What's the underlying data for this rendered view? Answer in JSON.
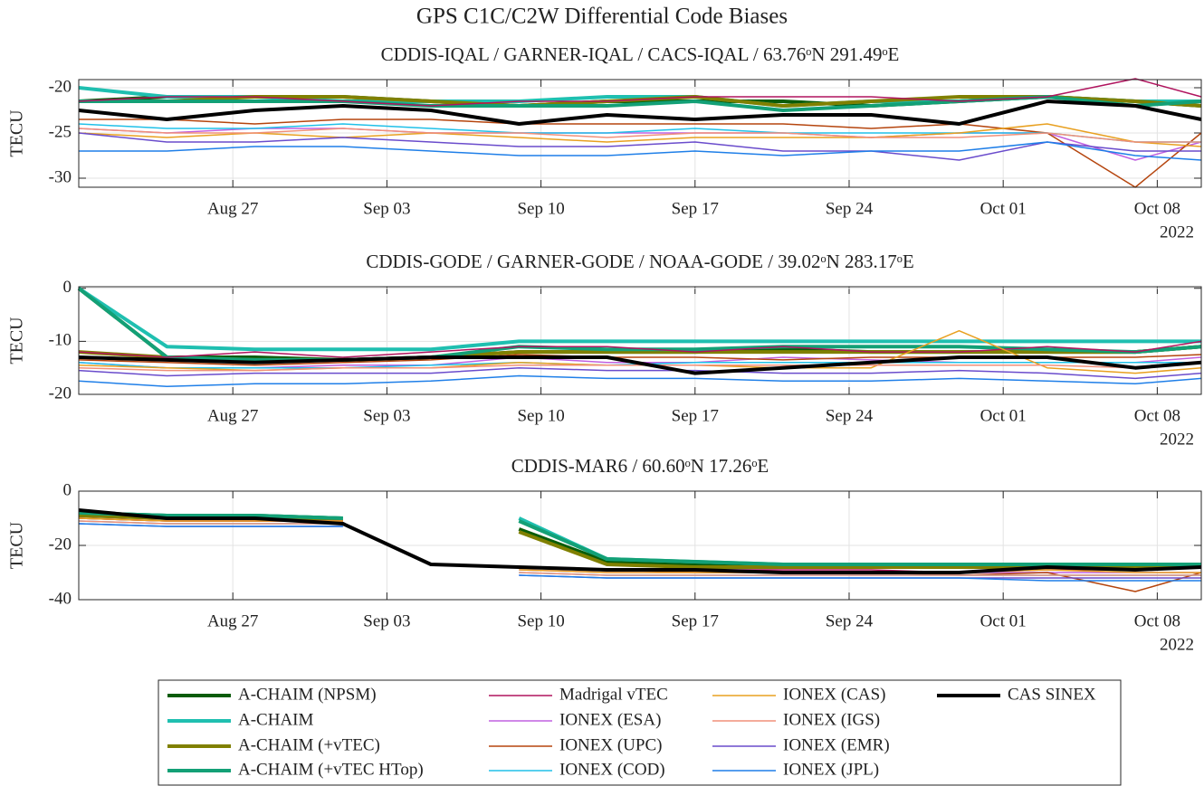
{
  "title": "GPS C1C/C2W Differential Code Biases",
  "chart_data": [
    {
      "type": "line",
      "title": "CDDIS-IQAL / GARNER-IQAL / CACS-IQAL / 63.76ᵒN 291.49ᵒE",
      "ylabel": "TECU",
      "x": [
        "2022-08-20",
        "2022-08-24",
        "2022-08-28",
        "2022-09-01",
        "2022-09-05",
        "2022-09-09",
        "2022-09-13",
        "2022-09-17",
        "2022-09-21",
        "2022-09-25",
        "2022-09-29",
        "2022-10-03",
        "2022-10-07",
        "2022-10-10"
      ],
      "xlim": [
        "2022-08-20",
        "2022-10-10"
      ],
      "xticks": [
        {
          "value": "2022-08-27",
          "label": "Aug 27"
        },
        {
          "value": "2022-09-03",
          "label": "Sep 03"
        },
        {
          "value": "2022-09-10",
          "label": "Sep 10"
        },
        {
          "value": "2022-09-17",
          "label": "Sep 17"
        },
        {
          "value": "2022-09-24",
          "label": "Sep 24"
        },
        {
          "value": "2022-10-01",
          "label": "Oct 01"
        },
        {
          "value": "2022-10-08",
          "label": "Oct 08"
        }
      ],
      "x_year_label": "2022",
      "ylim": [
        -31,
        -19.1
      ],
      "yticks": [
        -30,
        -25,
        -20
      ],
      "grid": true,
      "legend": "bottom",
      "series": [
        {
          "name": "A-CHAIM (NPSM)",
          "color": "#0a5c0a",
          "line_width": 4,
          "values": [
            -21.5,
            -21,
            -21,
            -21,
            -21.5,
            -22,
            -21.5,
            -21.5,
            -21.5,
            -22,
            -21.5,
            -21,
            -21.5,
            -22
          ]
        },
        {
          "name": "A-CHAIM",
          "color": "#1fbfb0",
          "line_width": 4,
          "values": [
            -20,
            -21,
            -21,
            -21.5,
            -21.5,
            -21.5,
            -21,
            -21,
            -22,
            -21.5,
            -21.5,
            -21,
            -21.5,
            -21.5
          ]
        },
        {
          "name": "A-CHAIM (+vTEC)",
          "color": "#808000",
          "line_width": 4,
          "values": [
            -21.5,
            -21.5,
            -21,
            -21,
            -21.5,
            -22,
            -21.5,
            -21,
            -22,
            -21.5,
            -21,
            -21,
            -21.5,
            -22
          ]
        },
        {
          "name": "A-CHAIM (+vTEC HTop)",
          "color": "#13a076",
          "line_width": 4,
          "values": [
            -21.5,
            -21.5,
            -21.5,
            -21.5,
            -22,
            -22,
            -22,
            -21.5,
            -22.5,
            -22,
            -21.5,
            -21,
            -22,
            -21.5
          ]
        },
        {
          "name": "Madrigal vTEC",
          "color": "#b0145e",
          "line_width": 1.5,
          "values": [
            -21.5,
            -21,
            -21,
            -21.5,
            -22,
            -21.5,
            -21.5,
            -21,
            -21,
            -21,
            -21.5,
            -21,
            -19,
            -21
          ]
        },
        {
          "name": "IONEX (ESA)",
          "color": "#c060e0",
          "line_width": 1.5,
          "values": [
            -24.5,
            -25,
            -24.5,
            -24.5,
            -25,
            -25,
            -25,
            -25,
            -25,
            -25.5,
            -25,
            -25,
            -28,
            -26
          ]
        },
        {
          "name": "IONEX (UPC)",
          "color": "#b5450e",
          "line_width": 1.5,
          "values": [
            -23.5,
            -23.5,
            -24,
            -23.5,
            -23.5,
            -24,
            -24,
            -24,
            -24,
            -24.5,
            -24,
            -25,
            -31,
            -25
          ]
        },
        {
          "name": "IONEX (COD)",
          "color": "#20c0e8",
          "line_width": 1.5,
          "values": [
            -24,
            -24.5,
            -24.5,
            -24,
            -24.5,
            -25,
            -25,
            -24.5,
            -25,
            -25,
            -25,
            -25,
            -26,
            -26
          ]
        },
        {
          "name": "IONEX (CAS)",
          "color": "#e8a020",
          "line_width": 1.5,
          "values": [
            -25,
            -25.5,
            -25,
            -25.5,
            -25,
            -25.5,
            -26,
            -25.5,
            -25.5,
            -25.5,
            -25,
            -24,
            -26,
            -26.5
          ]
        },
        {
          "name": "IONEX (IGS)",
          "color": "#f0907a",
          "line_width": 1.5,
          "values": [
            -24.5,
            -25,
            -25,
            -24.5,
            -25,
            -25,
            -25.5,
            -25,
            -25,
            -25.5,
            -25.5,
            -25,
            -26,
            -26
          ]
        },
        {
          "name": "IONEX (EMR)",
          "color": "#6a4ccc",
          "line_width": 1.5,
          "values": [
            -25,
            -26,
            -26,
            -25.5,
            -26,
            -26.5,
            -26.5,
            -26,
            -27,
            -27,
            -28,
            -26,
            -27,
            -27
          ]
        },
        {
          "name": "IONEX (JPL)",
          "color": "#1f7fe8",
          "line_width": 1.5,
          "values": [
            -27,
            -27,
            -26.5,
            -26.5,
            -27,
            -27.5,
            -27.5,
            -27,
            -27.5,
            -27,
            -27,
            -26,
            -27.5,
            -28
          ]
        },
        {
          "name": "CAS SINEX",
          "color": "#000000",
          "line_width": 4,
          "values": [
            -22.5,
            -23.5,
            -22.5,
            -22,
            -22.5,
            -24,
            -23,
            -23.5,
            -23,
            -23,
            -24,
            -21.5,
            -22,
            -23.5
          ]
        }
      ]
    },
    {
      "type": "line",
      "title": "CDDIS-GODE / GARNER-GODE / NOAA-GODE / 39.02ᵒN 283.17ᵒE",
      "ylabel": "TECU",
      "x": [
        "2022-08-20",
        "2022-08-24",
        "2022-08-28",
        "2022-09-01",
        "2022-09-05",
        "2022-09-09",
        "2022-09-13",
        "2022-09-17",
        "2022-09-21",
        "2022-09-25",
        "2022-09-29",
        "2022-10-03",
        "2022-10-07",
        "2022-10-10"
      ],
      "xlim": [
        "2022-08-20",
        "2022-10-10"
      ],
      "xticks": [
        {
          "value": "2022-08-27",
          "label": "Aug 27"
        },
        {
          "value": "2022-09-03",
          "label": "Sep 03"
        },
        {
          "value": "2022-09-10",
          "label": "Sep 10"
        },
        {
          "value": "2022-09-17",
          "label": "Sep 17"
        },
        {
          "value": "2022-09-24",
          "label": "Sep 24"
        },
        {
          "value": "2022-10-01",
          "label": "Oct 01"
        },
        {
          "value": "2022-10-08",
          "label": "Oct 08"
        }
      ],
      "x_year_label": "2022",
      "ylim": [
        -20,
        0.3
      ],
      "yticks": [
        -20,
        -10,
        0
      ],
      "grid": true,
      "series": [
        {
          "values": [
            0,
            -13,
            -13,
            -13.5,
            -13,
            -12,
            -12,
            -12,
            -11.5,
            -12,
            -12,
            -12,
            -12,
            -11
          ]
        },
        {
          "values": [
            0,
            -11,
            -11.5,
            -11.5,
            -11.5,
            -10,
            -10,
            -10,
            -10,
            -10,
            -10,
            -10,
            -10,
            -10
          ]
        },
        {
          "values": [
            -12,
            -13,
            -13.5,
            -13.5,
            -13,
            -12,
            -12,
            -12,
            -12,
            -12,
            -12,
            -12,
            -12,
            -11
          ]
        },
        {
          "values": [
            0,
            -13,
            -13.5,
            -13.5,
            -13,
            -11,
            -11.5,
            -11.5,
            -11,
            -11,
            -11,
            -11.5,
            -12,
            -11
          ]
        },
        {
          "values": [
            -12,
            -13,
            -12,
            -13,
            -12,
            -11,
            -11,
            -12,
            -11,
            -12,
            -12,
            -11,
            -12,
            -10
          ]
        },
        {
          "values": [
            -14,
            -15,
            -15,
            -14.5,
            -14.5,
            -13,
            -14,
            -14,
            -13,
            -13.5,
            -14,
            -14,
            -14,
            -13
          ]
        },
        {
          "values": [
            -13.5,
            -14,
            -14.5,
            -14,
            -13.5,
            -12.5,
            -13,
            -13,
            -13.5,
            -13,
            -13,
            -13,
            -13,
            -12.5
          ]
        },
        {
          "values": [
            -14,
            -15,
            -15,
            -15,
            -14.5,
            -14,
            -14.5,
            -14,
            -14,
            -14,
            -14,
            -14,
            -14,
            -14
          ]
        },
        {
          "values": [
            -14.5,
            -15,
            -15.5,
            -15,
            -15,
            -14,
            -14.5,
            -14.5,
            -15,
            -15,
            -8,
            -15,
            -16,
            -15
          ]
        },
        {
          "values": [
            -15,
            -15.5,
            -15.5,
            -15,
            -15,
            -14.5,
            -14.5,
            -14.5,
            -14.5,
            -14.5,
            -14.5,
            -14.5,
            -15,
            -14
          ]
        },
        {
          "values": [
            -15.5,
            -16.5,
            -16,
            -16,
            -16,
            -15,
            -15.5,
            -15.5,
            -16,
            -16,
            -15.5,
            -16,
            -17,
            -16
          ]
        },
        {
          "values": [
            -17.5,
            -18.5,
            -18,
            -18,
            -17.5,
            -16.5,
            -17,
            -17,
            -17.5,
            -17.5,
            -17,
            -17.5,
            -18,
            -17
          ]
        },
        {
          "values": [
            -13,
            -13.5,
            -14,
            -13.5,
            -13,
            -13,
            -13,
            -16,
            -15,
            -14,
            -13,
            -13,
            -15,
            -14
          ]
        }
      ]
    },
    {
      "type": "line",
      "title": "CDDIS-MAR6 / 60.60ᵒN 17.26ᵒE",
      "ylabel": "TECU",
      "x": [
        "2022-08-20",
        "2022-08-24",
        "2022-08-28",
        "2022-09-01",
        "2022-09-05",
        "2022-09-09",
        "2022-09-13",
        "2022-09-17",
        "2022-09-21",
        "2022-09-25",
        "2022-09-29",
        "2022-10-03",
        "2022-10-07",
        "2022-10-10"
      ],
      "xlim": [
        "2022-08-20",
        "2022-10-10"
      ],
      "xticks": [
        {
          "value": "2022-08-27",
          "label": "Aug 27"
        },
        {
          "value": "2022-09-03",
          "label": "Sep 03"
        },
        {
          "value": "2022-09-10",
          "label": "Sep 10"
        },
        {
          "value": "2022-09-17",
          "label": "Sep 17"
        },
        {
          "value": "2022-09-24",
          "label": "Sep 24"
        },
        {
          "value": "2022-10-01",
          "label": "Oct 01"
        },
        {
          "value": "2022-10-08",
          "label": "Oct 08"
        }
      ],
      "x_year_label": "2022",
      "ylim": [
        -40,
        0
      ],
      "yticks": [
        -40,
        -20,
        0
      ],
      "grid": true,
      "series": [
        {
          "values": [
            -8,
            -9,
            -9,
            -10,
            null,
            -14,
            -26,
            -27,
            -27,
            -27,
            -28,
            -28,
            -28,
            -27
          ]
        },
        {
          "values": [
            -8,
            -9,
            -9,
            -10,
            null,
            -10,
            -25,
            -26,
            -27,
            -27,
            -27,
            -27,
            -27,
            -27
          ]
        },
        {
          "values": [
            -9,
            -10,
            -10,
            -11,
            null,
            -15,
            -27,
            -28,
            -28,
            -28,
            -28,
            -28,
            -28,
            -28
          ]
        },
        {
          "values": [
            -8,
            -9,
            -9,
            -10,
            null,
            -11,
            -25,
            -26,
            -27,
            -27,
            -27,
            -27,
            -27,
            -27
          ]
        },
        {
          "values": [
            -10,
            -11,
            -11,
            -11,
            null,
            -28,
            -29,
            -29,
            -29,
            -29,
            -30,
            -29,
            -29,
            -28
          ]
        },
        {
          "values": [
            -10,
            -11,
            -11,
            -11,
            null,
            -29,
            -30,
            -30,
            -30,
            -30,
            -30,
            -30,
            -30,
            -30
          ]
        },
        {
          "values": [
            -10,
            -11,
            -11,
            -11,
            null,
            -28,
            -29,
            -30,
            -30,
            -30,
            -31,
            -30,
            -37,
            -30
          ]
        },
        {
          "values": [
            -11,
            -12,
            -12,
            -12,
            null,
            -30,
            -31,
            -31,
            -31,
            -31,
            -31,
            -31,
            -31,
            -31
          ]
        },
        {
          "values": [
            -10,
            -11,
            -11,
            -11,
            null,
            -29,
            -30,
            -30,
            -30,
            -30,
            -30,
            -29,
            -30,
            -30
          ]
        },
        {
          "values": [
            -11,
            -12,
            -12,
            -12,
            null,
            -30,
            -31,
            -31,
            -31,
            -31,
            -31,
            -31,
            -31,
            -31
          ]
        },
        {
          "values": [
            -12,
            -13,
            -13,
            -13,
            null,
            -31,
            -32,
            -32,
            -32,
            -32,
            -32,
            -32,
            -32,
            -32
          ]
        },
        {
          "values": [
            -12,
            -13,
            -13,
            -13,
            null,
            -31,
            -32,
            -32,
            -32,
            -32,
            -32,
            -33,
            -33,
            -33
          ]
        },
        {
          "values": [
            -7,
            -10,
            -10,
            -12,
            -27,
            -28,
            -29,
            -29,
            -30,
            -30,
            -30,
            -28,
            -29,
            -28
          ]
        }
      ]
    }
  ]
}
